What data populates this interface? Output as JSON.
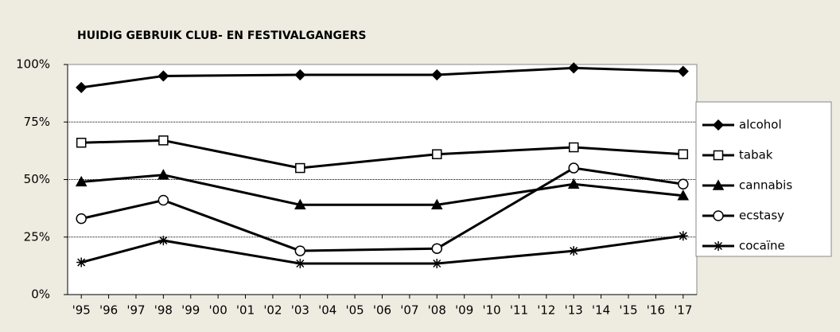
{
  "chart_data": {
    "type": "line",
    "title": "HUIDIG GEBRUIK CLUB- EN FESTIVALGANGERS",
    "x": [
      1995,
      1998,
      2003,
      2008,
      2013,
      2017
    ],
    "xlim": [
      1994.5,
      2017.5
    ],
    "xticks": [
      {
        "value": 1995,
        "label": "'95"
      },
      {
        "value": 1996,
        "label": "'96"
      },
      {
        "value": 1997,
        "label": "'97"
      },
      {
        "value": 1998,
        "label": "'98"
      },
      {
        "value": 1999,
        "label": "'99"
      },
      {
        "value": 2000,
        "label": "'00"
      },
      {
        "value": 2001,
        "label": "'01"
      },
      {
        "value": 2002,
        "label": "'02"
      },
      {
        "value": 2003,
        "label": "'03"
      },
      {
        "value": 2004,
        "label": "'04"
      },
      {
        "value": 2005,
        "label": "'05"
      },
      {
        "value": 2006,
        "label": "'06"
      },
      {
        "value": 2007,
        "label": "'07"
      },
      {
        "value": 2008,
        "label": "'08"
      },
      {
        "value": 2009,
        "label": "'09"
      },
      {
        "value": 2010,
        "label": "'10"
      },
      {
        "value": 2011,
        "label": "'11"
      },
      {
        "value": 2012,
        "label": "'12"
      },
      {
        "value": 2013,
        "label": "'13"
      },
      {
        "value": 2014,
        "label": "'14"
      },
      {
        "value": 2015,
        "label": "'15"
      },
      {
        "value": 2016,
        "label": "'16"
      },
      {
        "value": 2017,
        "label": "'17"
      }
    ],
    "ylim": [
      0,
      100
    ],
    "yticks": [
      {
        "value": 0,
        "label": "0%"
      },
      {
        "value": 25,
        "label": "25%"
      },
      {
        "value": 50,
        "label": "50%"
      },
      {
        "value": 75,
        "label": "75%"
      },
      {
        "value": 100,
        "label": "100%"
      }
    ],
    "grid": true,
    "legend": "right",
    "series": [
      {
        "name": "alcohol",
        "color": "#000000",
        "marker": "diamond",
        "values": [
          90,
          95,
          95.5,
          95.5,
          98.5,
          97
        ]
      },
      {
        "name": "tabak",
        "color": "#000000",
        "marker": "square",
        "values": [
          66,
          67,
          55,
          61,
          64,
          61
        ]
      },
      {
        "name": "cannabis",
        "color": "#000000",
        "marker": "triangle",
        "values": [
          49,
          52,
          39,
          39,
          48,
          43
        ]
      },
      {
        "name": "ecstasy",
        "color": "#000000",
        "marker": "circle",
        "values": [
          33,
          41,
          19,
          20,
          55,
          48
        ]
      },
      {
        "name": "cocaïne",
        "color": "#000000",
        "marker": "star",
        "values": [
          14,
          23.5,
          13.5,
          13.5,
          19,
          25.5
        ]
      }
    ]
  }
}
